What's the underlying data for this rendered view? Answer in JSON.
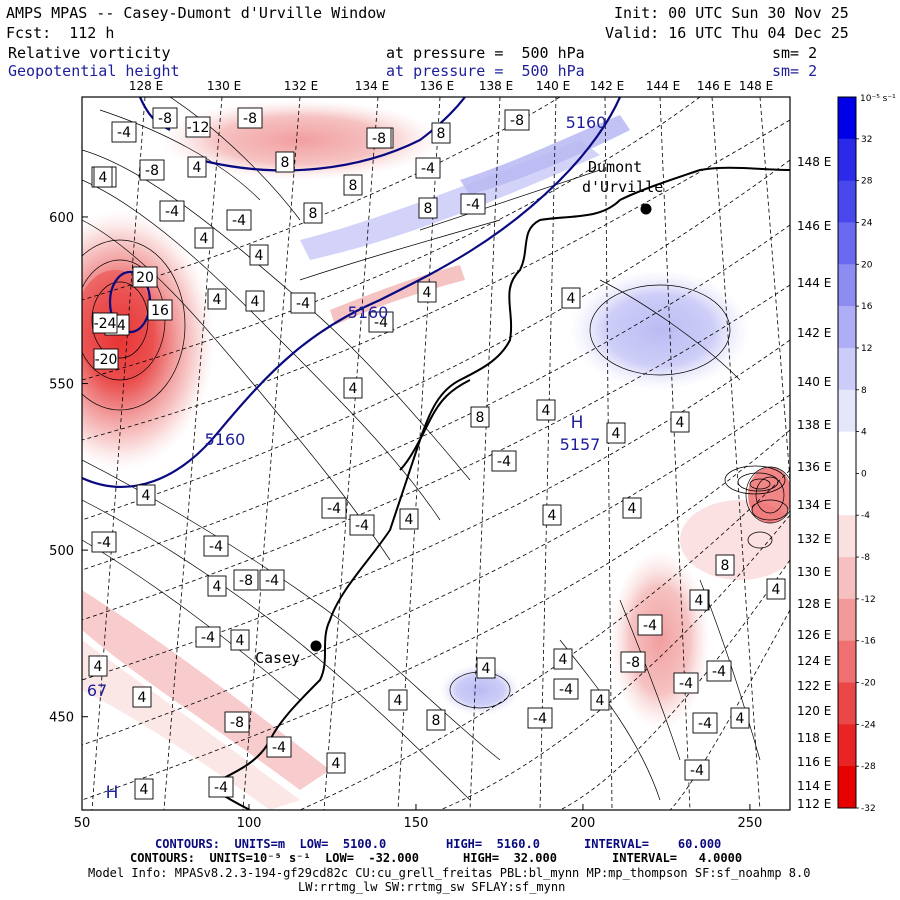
{
  "header": {
    "title": "AMPS MPAS -- Casey-Dumont d'Urville Window",
    "init": "Init: 00 UTC Sun 30 Nov 25",
    "fcst": "Fcst:  112 h",
    "valid": "Valid: 16 UTC Thu 04 Dec 25",
    "field1": "Relative vorticity",
    "field1_level": "at pressure =  500 hPa",
    "field1_sm": "sm= 2",
    "field2": "Geopotential height",
    "field2_level": "at pressure =  500 hPa",
    "field2_sm": "sm= 2"
  },
  "lon_labels_top": [
    "128 E",
    "130 E",
    "132 E",
    "134 E",
    "136 E",
    "138 E",
    "140 E",
    "142 E",
    "144 E",
    "146 E",
    "148 E"
  ],
  "lat_labels_right": [
    "148 E",
    "146 E",
    "144 E",
    "142 E",
    "140 E",
    "138 E",
    "136 E",
    "134 E",
    "132 E",
    "130 E",
    "128 E",
    "126 E",
    "124 E",
    "122 E",
    "120 E",
    "118 E",
    "116 E",
    "114 E",
    "112 E"
  ],
  "x_axis": {
    "ticks": [
      "50",
      "100",
      "150",
      "200",
      "250"
    ],
    "values": [
      50,
      100,
      150,
      200,
      250
    ],
    "range": [
      50,
      262
    ]
  },
  "y_axis": {
    "ticks": [
      "450",
      "500",
      "550",
      "600"
    ],
    "values": [
      450,
      500,
      550,
      600
    ],
    "range": [
      422,
      636
    ]
  },
  "colorbar": {
    "unit": "10⁻⁵ s⁻¹",
    "labels": [
      "32",
      "28",
      "24",
      "20",
      "16",
      "12",
      "8",
      "4",
      "0",
      "-4",
      "-8",
      "-12",
      "-16",
      "-20",
      "-24",
      "-28",
      "-32"
    ],
    "colors": [
      "#0000e8",
      "#2a2ae8",
      "#4848ec",
      "#6a6af0",
      "#8c8cf2",
      "#aeaef6",
      "#ccccf8",
      "#e6e6fa",
      "#ffffff",
      "#ffffff",
      "#fbe0e0",
      "#f6c0c0",
      "#f29a9a",
      "#ee7070",
      "#ea4848",
      "#e82424",
      "#e60000"
    ]
  },
  "places": [
    {
      "name": "Dumont",
      "name2": "d'Urville",
      "x": 214,
      "y": 608
    },
    {
      "name": "Casey",
      "x": 119,
      "y": 475
    }
  ],
  "height_labels": [
    "5160",
    "5160",
    "5160",
    "5157",
    "67"
  ],
  "pressure_labels": [
    "H",
    "H"
  ],
  "vort_labels": [
    "-4",
    "-8",
    "-12",
    "-8",
    "-4",
    "-8",
    "4",
    "8",
    "8",
    "-4",
    "8",
    "-8",
    "4",
    "-4",
    "4",
    "-4",
    "4",
    "-4",
    "20",
    "-20",
    "24",
    "-24",
    "16",
    "4",
    "8",
    "-8",
    "-4",
    "4",
    "-4",
    "4",
    "8",
    "-4",
    "4",
    "4",
    "8",
    "4",
    "-4",
    "4",
    "4",
    "4",
    "-4",
    "-4",
    "4",
    "4",
    "-4",
    "-4",
    "4",
    "-8",
    "-4",
    "4",
    "8",
    "4",
    "-4",
    "4",
    "-4",
    "4",
    "-8",
    "4",
    "-4",
    "4",
    "4",
    "-4",
    "4",
    "8",
    "-4",
    "-4",
    "-4",
    "4",
    "-4",
    "4",
    "4",
    "-8",
    "-4",
    "-4",
    "4",
    "4",
    "4"
  ],
  "footer": {
    "line1_a": "CONTOURS:  UNITS=m  LOW=  5100.0",
    "line1_b": "HIGH=  5160.0",
    "line1_c": "INTERVAL=    60.000",
    "line2_a": "CONTOURS:  UNITS=10⁻⁵ s⁻¹  LOW=  -32.000",
    "line2_b": "HIGH=  32.000",
    "line2_c": "INTERVAL=   4.0000",
    "line3": "Model Info: MPASv8.2.3-194-gf29cd82c CU:cu_grell_freitas PBL:bl_mynn MP:mp_thompson SF:sf_noahmp 8.0",
    "line4": "LW:rrtmg_lw SW:rrtmg_sw SFLAY:sf_mynn"
  }
}
